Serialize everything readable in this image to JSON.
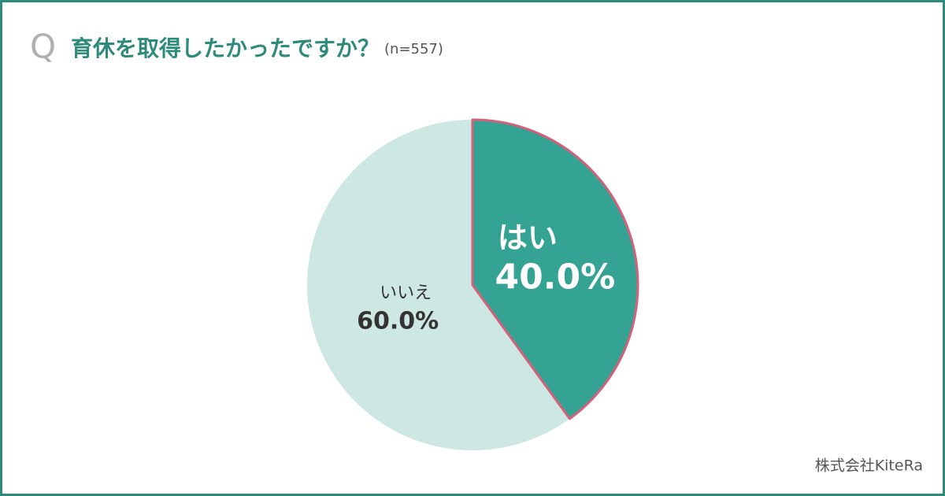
{
  "chart_data": {
    "type": "pie",
    "q_mark": "Q",
    "title": "育休を取得したかったですか？",
    "subtitle": "(n=557)",
    "categories": [
      "はい",
      "いいえ"
    ],
    "values": [
      40.0,
      60.0
    ],
    "value_labels": [
      "40.0%",
      "60.0%"
    ],
    "colors": [
      "#35a393",
      "#cde7e2"
    ],
    "highlight_stroke": "#d4607a",
    "source": "株式会社KiteRa"
  }
}
